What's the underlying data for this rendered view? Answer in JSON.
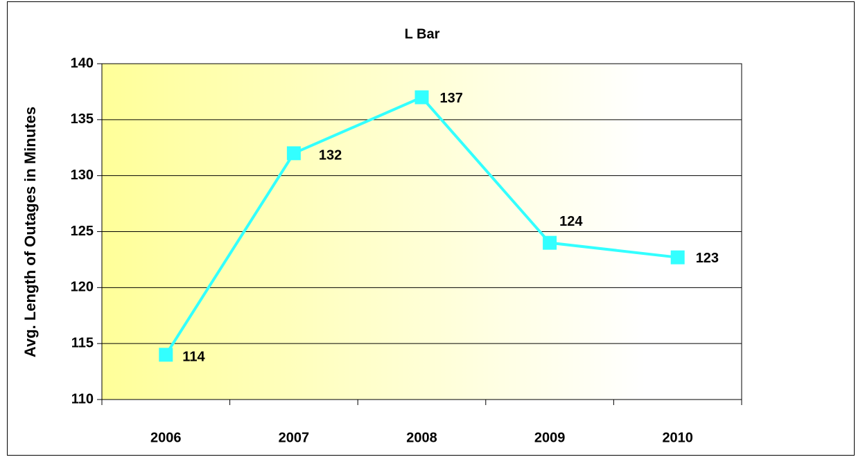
{
  "chart_data": {
    "type": "line",
    "title": "L Bar",
    "y_label": "Avg. Length of Outages in Minutes",
    "categories": [
      "2006",
      "2007",
      "2008",
      "2009",
      "2010"
    ],
    "series": [
      {
        "name": "Avg. Length of Outages in Minutes",
        "color": "#33ffff",
        "values": [
          114,
          132,
          137,
          124,
          122.7
        ],
        "value_labels": [
          "114",
          "132",
          "137",
          "124",
          "123"
        ]
      }
    ],
    "ylim": [
      110,
      140
    ],
    "yticks": [
      110,
      115,
      120,
      125,
      130,
      135,
      140
    ],
    "grid": true
  }
}
